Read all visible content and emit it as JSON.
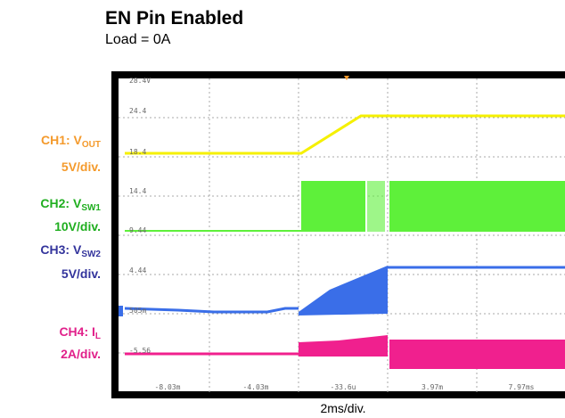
{
  "header": {
    "title": "EN Pin Enabled",
    "subtitle": "Load = 0A"
  },
  "channels": [
    {
      "prefix": "CH1: V",
      "sub": "OUT",
      "scale": "5V/div."
    },
    {
      "prefix": "CH2: V",
      "sub": "SW1",
      "scale": "10V/div."
    },
    {
      "prefix": "CH3: V",
      "sub": "SW2",
      "scale": "5V/div."
    },
    {
      "prefix": "CH4: I",
      "sub": "L",
      "scale": "2A/div."
    }
  ],
  "screen": {
    "y_labels": [
      "28.4V",
      "24.4",
      "18.4",
      "14.4",
      "9.44",
      "4.44",
      "505m",
      "-5.56"
    ],
    "x_labels": [
      "-8.03m",
      "-4.03m",
      "-33.6u",
      "3.97m",
      "7.97ms"
    ]
  },
  "footer": {
    "timebase": "2ms/div."
  }
}
